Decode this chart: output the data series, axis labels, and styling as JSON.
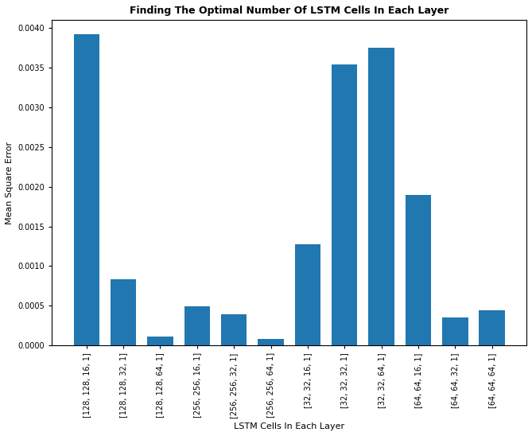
{
  "title": "Finding The Optimal Number Of LSTM Cells In Each Layer",
  "xlabel": "LSTM Cells In Each Layer",
  "ylabel": "Mean Square Error",
  "categories": [
    "[128, 128, 16, 1]",
    "[128, 128, 32, 1]",
    "[128, 128, 64, 1]",
    "[256, 256, 16, 1]",
    "[256, 256, 32, 1]",
    "[256, 256, 64, 1]",
    "[32, 32, 16, 1]",
    "[32, 32, 32, 1]",
    "[32, 32, 64, 1]",
    "[64, 64, 16, 1]",
    "[64, 64, 32, 1]",
    "[64, 64, 64, 1]"
  ],
  "values": [
    0.00392,
    0.00083,
    0.00011,
    0.00049,
    0.00039,
    8.5e-05,
    0.00128,
    0.00354,
    0.00375,
    0.0019,
    0.00035,
    0.00044
  ],
  "bar_color": "#2177b0",
  "ylim": [
    0,
    0.0041
  ],
  "yticks": [
    0.0,
    0.0005,
    0.001,
    0.0015,
    0.002,
    0.0025,
    0.003,
    0.0035,
    0.004
  ],
  "title_fontsize": 9,
  "label_fontsize": 8,
  "tick_fontsize": 7,
  "figwidth": 6.69,
  "figheight": 5.48,
  "dpi": 100
}
